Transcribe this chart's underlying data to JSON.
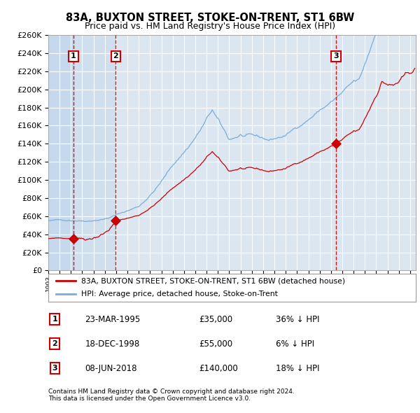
{
  "title": "83A, BUXTON STREET, STOKE-ON-TRENT, ST1 6BW",
  "subtitle": "Price paid vs. HM Land Registry's House Price Index (HPI)",
  "ytick_values": [
    0,
    20000,
    40000,
    60000,
    80000,
    100000,
    120000,
    140000,
    160000,
    180000,
    200000,
    220000,
    240000,
    260000
  ],
  "sale_years": [
    1995.22,
    1998.96,
    2018.44
  ],
  "sale_prices": [
    35000,
    55000,
    140000
  ],
  "legend_line1": "83A, BUXTON STREET, STOKE-ON-TRENT, ST1 6BW (detached house)",
  "legend_line2": "HPI: Average price, detached house, Stoke-on-Trent",
  "table_rows": [
    {
      "num": "1",
      "date": "23-MAR-1995",
      "price": "£35,000",
      "change": "36% ↓ HPI"
    },
    {
      "num": "2",
      "date": "18-DEC-1998",
      "price": "£55,000",
      "change": "6% ↓ HPI"
    },
    {
      "num": "3",
      "date": "08-JUN-2018",
      "price": "£140,000",
      "change": "18% ↓ HPI"
    }
  ],
  "footnote1": "Contains HM Land Registry data © Crown copyright and database right 2024.",
  "footnote2": "This data is licensed under the Open Government Licence v3.0.",
  "vline_dates": [
    1995.22,
    1998.96,
    2018.44
  ],
  "line_color_red": "#cc0000",
  "line_color_blue": "#7aadda",
  "background_color": "#ffffff",
  "plot_bg_color": "#dce6f1",
  "grid_color": "#ffffff",
  "xmin": 1993.0,
  "xmax": 2025.5,
  "ymin": 0,
  "ymax": 260000
}
